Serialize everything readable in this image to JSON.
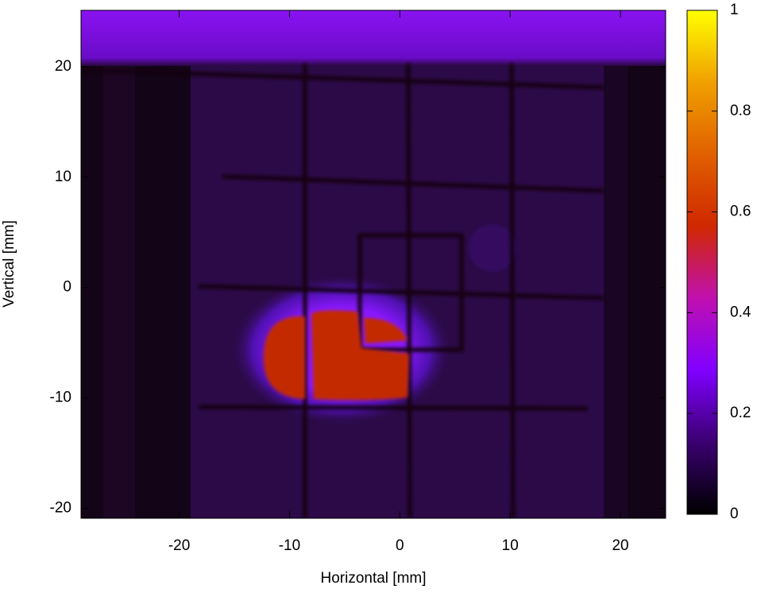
{
  "chart_data": {
    "type": "heatmap",
    "xlabel": "Horizontal [mm]",
    "ylabel": "Vertical [mm]",
    "xlim": [
      -28.9,
      24.1
    ],
    "xticks": [
      -20,
      -10,
      0,
      10,
      20
    ],
    "ylim": [
      -20.9,
      25.1
    ],
    "yticks": [
      -20,
      -10,
      0,
      10,
      20
    ],
    "colorbar": {
      "lim": [
        0,
        1
      ],
      "ticks": [
        0,
        0.2,
        0.4,
        0.6,
        0.8,
        1
      ],
      "colors": [
        "#000000",
        "#3a0070",
        "#8000ff",
        "#c010b0",
        "#d02800",
        "#e06000",
        "#f0a000",
        "#ffff00"
      ]
    }
  }
}
